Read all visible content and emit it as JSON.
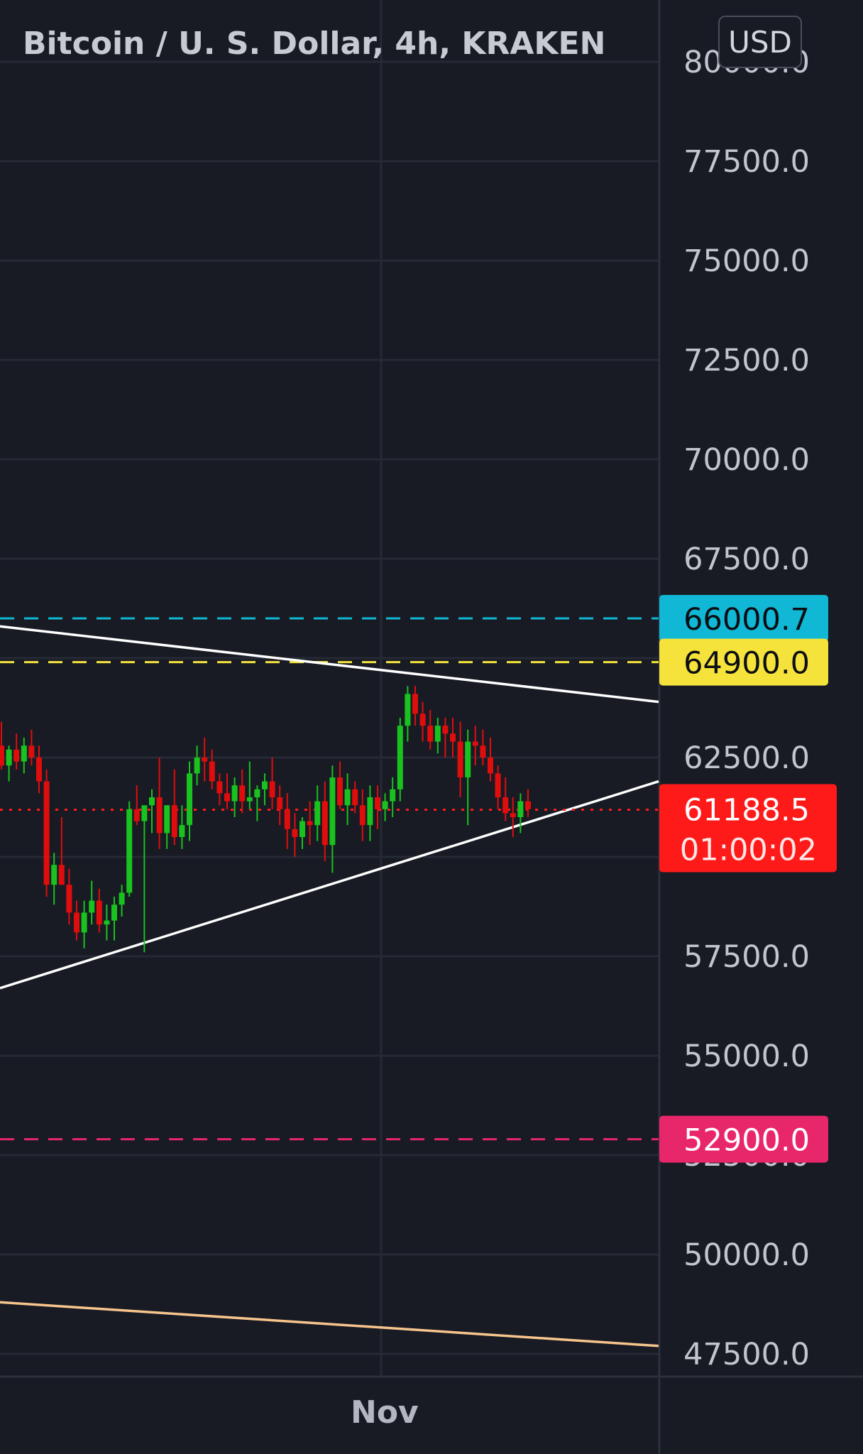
{
  "header": {
    "title": "Bitcoin / U. S. Dollar, 4h, KRAKEN",
    "currency_button": "USD"
  },
  "colors": {
    "background": "#181b24",
    "grid": "#262a35",
    "axis_text": "#c2c5ce",
    "up_candle": "#19c21f",
    "down_candle": "#e00d0d",
    "trendline": "#ffffff",
    "long_trendline": "#f7c58c",
    "level_cyan": "#10b8d6",
    "level_yellow": "#f5e33c",
    "level_pink": "#e8276b",
    "last_price": "#ff1a1a"
  },
  "chart_data": {
    "type": "candlestick",
    "title": "Bitcoin / U. S. Dollar, 4h, KRAKEN",
    "ylim": [
      46000,
      81500
    ],
    "y_ticks": [
      "47500.0",
      "50000.0",
      "52500.0",
      "55000.0",
      "57500.0",
      "60000.0",
      "62500.0",
      "65000.0",
      "67500.0",
      "70000.0",
      "72500.0",
      "75000.0",
      "77500.0",
      "80000.0"
    ],
    "x_ticks": [
      "Nov"
    ],
    "candles": [
      [
        62800,
        63400,
        62200,
        62300
      ],
      [
        62300,
        62800,
        61900,
        62700
      ],
      [
        62700,
        63100,
        62200,
        62400
      ],
      [
        62400,
        63000,
        62100,
        62800
      ],
      [
        62800,
        63200,
        62300,
        62500
      ],
      [
        62500,
        62800,
        61600,
        61900
      ],
      [
        61900,
        62200,
        59000,
        59300
      ],
      [
        59300,
        60100,
        58800,
        59800
      ],
      [
        59800,
        61000,
        59300,
        59300
      ],
      [
        59300,
        59700,
        58300,
        58600
      ],
      [
        58600,
        58900,
        57900,
        58100
      ],
      [
        58100,
        58900,
        57700,
        58600
      ],
      [
        58600,
        59400,
        58300,
        58900
      ],
      [
        58900,
        59200,
        58100,
        58300
      ],
      [
        58300,
        58800,
        57900,
        58400
      ],
      [
        58400,
        59000,
        57900,
        58800
      ],
      [
        58800,
        59300,
        58500,
        59100
      ],
      [
        59100,
        61400,
        59000,
        61200
      ],
      [
        61200,
        61800,
        60800,
        60900
      ],
      [
        60900,
        61200,
        57600,
        61300
      ],
      [
        61300,
        61700,
        60600,
        61500
      ],
      [
        61500,
        62500,
        60200,
        60600
      ],
      [
        60600,
        61300,
        60200,
        61300
      ],
      [
        61300,
        62200,
        60300,
        60500
      ],
      [
        60500,
        61300,
        60200,
        60800
      ],
      [
        60800,
        62400,
        60400,
        62100
      ],
      [
        62100,
        62800,
        61800,
        62500
      ],
      [
        62500,
        63000,
        61900,
        62400
      ],
      [
        62400,
        62700,
        61700,
        61900
      ],
      [
        61900,
        62100,
        61300,
        61600
      ],
      [
        61600,
        62100,
        61200,
        61400
      ],
      [
        61400,
        62000,
        61000,
        61800
      ],
      [
        61800,
        62200,
        61100,
        61400
      ],
      [
        61400,
        62400,
        61200,
        61500
      ],
      [
        61500,
        61800,
        60900,
        61700
      ],
      [
        61700,
        62100,
        61300,
        61900
      ],
      [
        61900,
        62500,
        61200,
        61500
      ],
      [
        61500,
        61800,
        60800,
        61200
      ],
      [
        61200,
        61600,
        60200,
        60700
      ],
      [
        60700,
        61100,
        60000,
        60500
      ],
      [
        60500,
        61000,
        60200,
        60900
      ],
      [
        60900,
        61400,
        60300,
        60800
      ],
      [
        60800,
        61800,
        60400,
        61400
      ],
      [
        61400,
        61900,
        59900,
        60300
      ],
      [
        60300,
        62300,
        59600,
        62000
      ],
      [
        62000,
        62400,
        61200,
        61300
      ],
      [
        61300,
        62100,
        60800,
        61700
      ],
      [
        61700,
        61900,
        61100,
        61300
      ],
      [
        61300,
        61700,
        60400,
        60800
      ],
      [
        60800,
        61800,
        60400,
        61500
      ],
      [
        61500,
        61800,
        60700,
        61200
      ],
      [
        61200,
        61600,
        60900,
        61400
      ],
      [
        61400,
        62000,
        61000,
        61700
      ],
      [
        61700,
        63500,
        61400,
        63300
      ],
      [
        63300,
        64300,
        62900,
        64100
      ],
      [
        64100,
        64300,
        63300,
        63600
      ],
      [
        63600,
        63900,
        62900,
        63300
      ],
      [
        63300,
        63700,
        62700,
        62900
      ],
      [
        62900,
        63500,
        62600,
        63300
      ],
      [
        63300,
        63500,
        62500,
        63100
      ],
      [
        63100,
        63500,
        62500,
        62900
      ],
      [
        62900,
        63400,
        61500,
        62000
      ],
      [
        62000,
        63200,
        60800,
        62900
      ],
      [
        62900,
        63300,
        62300,
        62800
      ],
      [
        62800,
        63200,
        62300,
        62500
      ],
      [
        62500,
        63000,
        61900,
        62100
      ],
      [
        62100,
        62300,
        61200,
        61500
      ],
      [
        61500,
        62000,
        60900,
        61100
      ],
      [
        61100,
        61500,
        60500,
        61000
      ],
      [
        61000,
        61600,
        60600,
        61400
      ],
      [
        61400,
        61700,
        61000,
        61200
      ]
    ],
    "horizontal_levels": [
      {
        "value": 66000.7,
        "label": "66000.7",
        "color": "#10b8d6",
        "style": "dashed"
      },
      {
        "value": 64900.0,
        "label": "64900.0",
        "color": "#f5e33c",
        "style": "dashed"
      },
      {
        "value": 52900.0,
        "label": "52900.0",
        "color": "#e8276b",
        "style": "dashed"
      }
    ],
    "trendlines": [
      {
        "from": [
          0,
          65800
        ],
        "to": [
          1,
          63900
        ],
        "color": "#ffffff"
      },
      {
        "from": [
          0,
          56700
        ],
        "to": [
          1,
          61900
        ],
        "color": "#ffffff"
      },
      {
        "from": [
          0,
          48800
        ],
        "to": [
          1,
          47700
        ],
        "color": "#f7c58c"
      }
    ],
    "last_price": {
      "value": 61188.5,
      "label": "61188.5",
      "countdown": "01:00:02"
    }
  }
}
